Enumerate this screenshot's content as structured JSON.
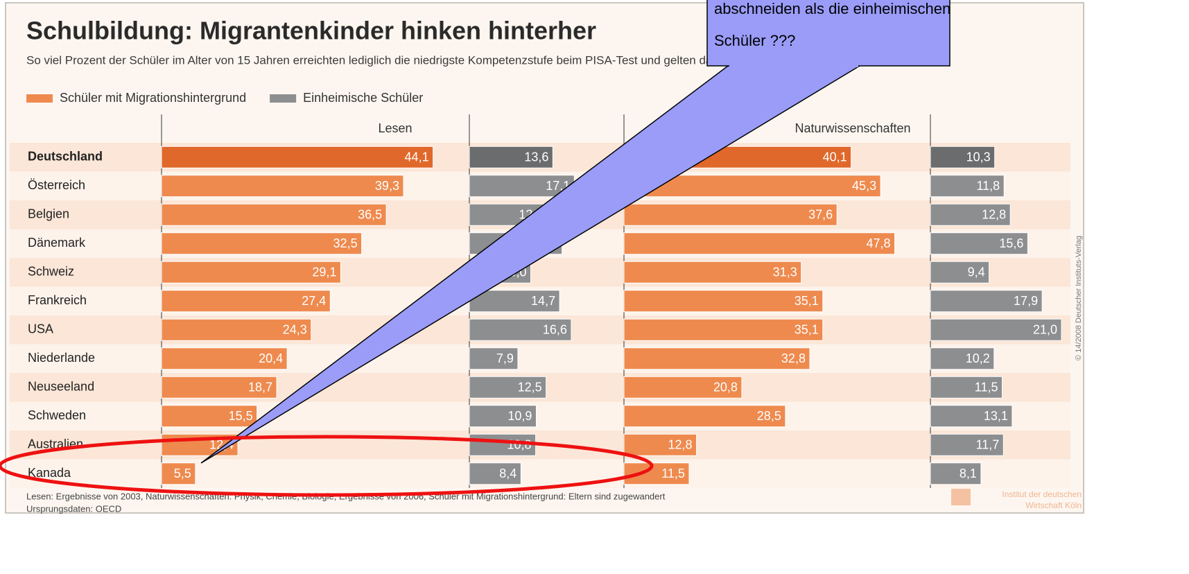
{
  "chart_data": {
    "type": "bar",
    "title": "Schulbildung: Migrantenkinder hinken hinterher",
    "subtitle": "So viel Prozent der Schüler im Alter von 15 Jahren erreichten lediglich die niedrigste Kompetenzstufe beim PISA-Test und gelten daher als bildungsarm",
    "series": [
      {
        "name": "Schüler mit Migrationshintergrund",
        "color": "#ee8a4e",
        "highlight_color": "#e0682a"
      },
      {
        "name": "Einheimische Schüler",
        "color": "#8d8e90",
        "highlight_color": "#6b6c6e"
      }
    ],
    "categories": [
      "Deutschland",
      "Österreich",
      "Belgien",
      "Dänemark",
      "Schweiz",
      "Frankreich",
      "USA",
      "Niederlande",
      "Neuseeland",
      "Schweden",
      "Australien",
      "Kanada"
    ],
    "panels": [
      {
        "title": "Lesen",
        "groups": [
          {
            "values": [
              44.1,
              39.3,
              36.5,
              32.5,
              29.1,
              27.4,
              24.3,
              20.4,
              18.7,
              15.5,
              12.4,
              5.5
            ],
            "value_labels": [
              "44,1",
              "39,3",
              "36,5",
              "32,5",
              "29,1",
              "27,4",
              "24,3",
              "20,4",
              "18,7",
              "15,5",
              "12,4",
              "5,5"
            ]
          },
          {
            "values": [
              13.6,
              17.1,
              12.7,
              15.1,
              10.0,
              14.7,
              16.6,
              7.9,
              12.5,
              10.9,
              10.8,
              8.4
            ],
            "value_labels": [
              "13,6",
              "17,1",
              "12,7",
              "15,1",
              "10,0",
              "14,7",
              "16,6",
              "7,9",
              "12,5",
              "10,9",
              "10,8",
              "8,4"
            ]
          }
        ]
      },
      {
        "title": "Naturwissenschaften",
        "groups": [
          {
            "values": [
              40.1,
              45.3,
              37.6,
              47.8,
              31.3,
              35.1,
              35.1,
              32.8,
              20.8,
              28.5,
              12.8,
              11.5
            ],
            "value_labels": [
              "40,1",
              "45,3",
              "37,6",
              "47,8",
              "31,3",
              "35,1",
              "35,1",
              "32,8",
              "20,8",
              "28,5",
              "12,8",
              "11,5"
            ]
          },
          {
            "values": [
              10.3,
              11.8,
              12.8,
              15.6,
              9.4,
              17.9,
              21.0,
              10.2,
              11.5,
              13.1,
              11.7,
              8.1
            ],
            "value_labels": [
              "10,3",
              "11,8",
              "12,8",
              "15,6",
              "9,4",
              "17,9",
              "21,0",
              "10,2",
              "11,5",
              "13,1",
              "11,7",
              "8,1"
            ]
          }
        ]
      }
    ],
    "highlight_category": "Deutschland",
    "footnote": [
      "Lesen: Ergebnisse von 2003, Naturwissenschaften: Physik, Chemie, Biologie, Ergebnisse von 2006, Schüler mit Migrationshintergrund: Eltern sind zugewandert",
      "Ursprungsdaten: OECD"
    ],
    "source_logo": [
      "Institut der deutschen",
      "Wirtschaft Köln"
    ],
    "copyright": "© 14/2008 Deutscher Instituts-Verlag"
  },
  "callout": {
    "lines": [
      "abschneiden als die einheimischen",
      "Schüler ???"
    ]
  }
}
